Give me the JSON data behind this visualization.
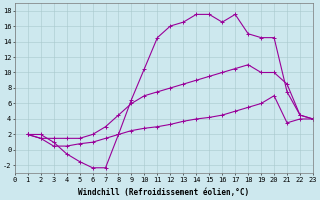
{
  "xlabel": "Windchill (Refroidissement éolien,°C)",
  "bg_color": "#cde8ee",
  "grid_color": "#a8c8cc",
  "line_color": "#990099",
  "xlim": [
    0,
    23
  ],
  "ylim": [
    -3,
    19
  ],
  "xticks": [
    0,
    1,
    2,
    3,
    4,
    5,
    6,
    7,
    8,
    9,
    10,
    11,
    12,
    13,
    14,
    15,
    16,
    17,
    18,
    19,
    20,
    21,
    22,
    23
  ],
  "yticks": [
    -2,
    0,
    2,
    4,
    6,
    8,
    10,
    12,
    14,
    16,
    18
  ],
  "line1_x": [
    1,
    2,
    3,
    4,
    5,
    6,
    7,
    8,
    9,
    10,
    11,
    12,
    13,
    14,
    15,
    16,
    17,
    18,
    19,
    20,
    21,
    22,
    23
  ],
  "line1_y": [
    2.0,
    2.0,
    1.0,
    -0.5,
    -1.5,
    -2.3,
    -2.3,
    2.0,
    6.5,
    10.5,
    14.5,
    16.0,
    16.5,
    17.5,
    17.5,
    16.5,
    17.5,
    15.0,
    14.5,
    14.5,
    7.5,
    4.5,
    4.0
  ],
  "line2_x": [
    1,
    2,
    3,
    4,
    5,
    6,
    7,
    8,
    9,
    10,
    11,
    12,
    13,
    14,
    15,
    16,
    17,
    18,
    19,
    20,
    21,
    22,
    23
  ],
  "line2_y": [
    2.0,
    1.5,
    1.5,
    1.5,
    1.5,
    2.0,
    3.0,
    4.5,
    6.0,
    7.0,
    7.5,
    8.0,
    8.5,
    9.0,
    9.5,
    10.0,
    10.5,
    11.0,
    10.0,
    10.0,
    8.5,
    4.5,
    4.0
  ],
  "line3_x": [
    1,
    2,
    3,
    4,
    5,
    6,
    7,
    8,
    9,
    10,
    11,
    12,
    13,
    14,
    15,
    16,
    17,
    18,
    19,
    20,
    21,
    22,
    23
  ],
  "line3_y": [
    2.0,
    1.5,
    0.5,
    0.5,
    0.8,
    1.0,
    1.5,
    2.0,
    2.5,
    2.8,
    3.0,
    3.3,
    3.7,
    4.0,
    4.2,
    4.5,
    5.0,
    5.5,
    6.0,
    7.0,
    3.5,
    4.0,
    4.0
  ],
  "marker_size": 3.0,
  "linewidth": 0.8,
  "font_size": 5.5,
  "tick_font_size": 5.0
}
